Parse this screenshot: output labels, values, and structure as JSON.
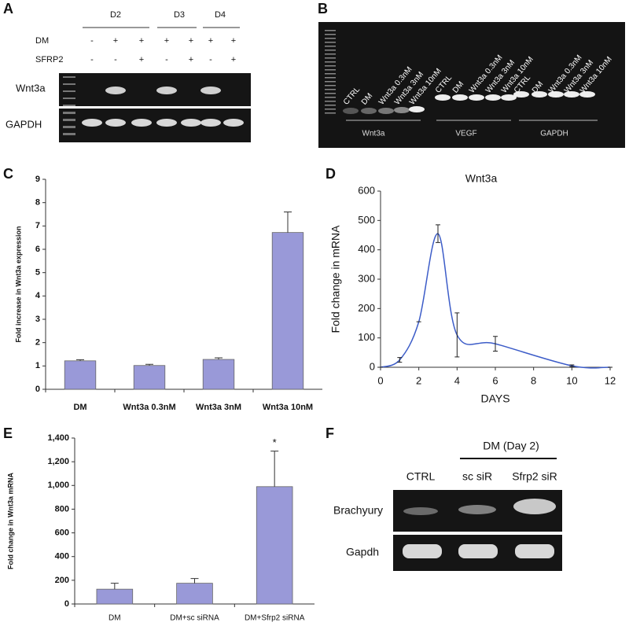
{
  "panels": {
    "a": {
      "letter": "A",
      "days": [
        "D2",
        "D3",
        "D4"
      ],
      "row_labels": [
        "DM",
        "SFRP2"
      ],
      "dm": [
        "-",
        "+",
        "+",
        "+",
        "+",
        "+",
        "+"
      ],
      "sfrp2": [
        "-",
        "-",
        "+",
        "-",
        "+",
        "-",
        "+"
      ],
      "genes": [
        "Wnt3a",
        "GAPDH"
      ]
    },
    "b": {
      "letter": "B",
      "lanes": [
        "CTRL",
        "DM",
        "Wnt3a 0.3nM",
        "Wnt3a 3nM",
        "Wnt3a 10nM",
        "CTRL",
        "DM",
        "Wnt3a 0.3nM",
        "Wnt3a 3nM",
        "Wnt3a 10nM",
        "CTRL",
        "DM",
        "Wnt3a 0.3nM",
        "Wnt3a 3nM",
        "Wnt3a 10nM"
      ],
      "groups": [
        "Wnt3a",
        "VEGF",
        "GAPDH"
      ]
    },
    "c": {
      "letter": "C"
    },
    "d": {
      "letter": "D"
    },
    "e": {
      "letter": "E"
    },
    "f": {
      "letter": "F",
      "condition": "DM (Day 2)",
      "lanes": [
        "CTRL",
        "sc siR",
        "Sfrp2 siR"
      ],
      "genes": [
        "Brachyury",
        "Gapdh"
      ]
    }
  },
  "chart_data": [
    {
      "type": "bar",
      "y_label": "Fold increase in Wnt3a expression",
      "categories": [
        "DM",
        "Wnt3a 0.3nM",
        "Wnt3a 3nM",
        "Wnt3a 10nM"
      ],
      "values": [
        1.22,
        1.02,
        1.28,
        6.72
      ],
      "errors": [
        0.05,
        0.05,
        0.07,
        0.88
      ],
      "color": "#9999d8",
      "ylim": [
        0,
        9
      ],
      "yticks": [
        0,
        1,
        2,
        3,
        4,
        5,
        6,
        7,
        8,
        9
      ]
    },
    {
      "type": "line",
      "title": "Wnt3a",
      "x_label": "DAYS",
      "y_label": "Fold change in mRNA",
      "x": [
        0,
        1,
        2,
        3,
        4,
        6,
        10,
        12
      ],
      "values": [
        0,
        25,
        155,
        455,
        110,
        80,
        5,
        0
      ],
      "errors": [
        0,
        8,
        0,
        30,
        75,
        25,
        3,
        0
      ],
      "color": "#3c5cc8",
      "xlim": [
        0,
        12
      ],
      "xticks": [
        0,
        2,
        4,
        6,
        8,
        10,
        12
      ],
      "ylim": [
        0,
        600
      ],
      "yticks": [
        0,
        100,
        200,
        300,
        400,
        500,
        600
      ]
    },
    {
      "type": "bar",
      "y_label": "Fold change in Wnt3a mRNA",
      "categories": [
        "DM",
        "DM+sc siRNA",
        "DM+Sfrp2 siRNA"
      ],
      "values": [
        125,
        175,
        990
      ],
      "errors": [
        50,
        40,
        300
      ],
      "annotation": "*",
      "color": "#9999d8",
      "ylim": [
        0,
        1400
      ],
      "yticks": [
        0,
        200,
        400,
        600,
        800,
        {
          "value": 1000,
          "label": "1,000"
        },
        {
          "value": 1200,
          "label": "1,200"
        },
        {
          "value": 1400,
          "label": "1,400"
        }
      ]
    }
  ]
}
